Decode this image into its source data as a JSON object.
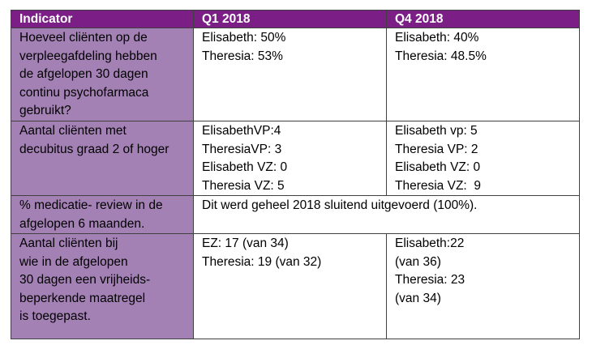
{
  "header": {
    "col1": "Indicator",
    "col2": "Q1 2018",
    "col3": "Q4 2018"
  },
  "rows": [
    {
      "indicator": [
        "Hoeveel cliënten op de",
        "verpleegafdeling hebben",
        "de afgelopen 30 dagen",
        "continu psychofarmaca",
        "gebruikt?"
      ],
      "q1": [
        "Elisabeth: 50%",
        "Theresia: 53%"
      ],
      "q4": [
        "Elisabeth: 40%",
        "Theresia: 48.5%"
      ]
    },
    {
      "indicator": [
        "Aantal cliënten met",
        "decubitus graad 2 of hoger"
      ],
      "q1": [
        "ElisabethVP:4",
        "TheresiaVP: 3",
        "Elisabeth VZ: 0",
        "Theresia VZ: 5"
      ],
      "q4": [
        "Elisabeth vp: 5",
        "Theresia VP: 2",
        "Elisabeth VZ: 0",
        "Theresia VZ:  9"
      ]
    },
    {
      "indicator": [
        "% medicatie- review in de",
        "afgelopen 6 maanden."
      ],
      "merged": "Dit werd geheel 2018 sluitend uitgevoerd (100%)."
    },
    {
      "indicator": [
        "Aantal cliënten bij",
        "wie in de afgelopen",
        "30 dagen een vrijheids-",
        "beperkende maatregel",
        "is toegepast."
      ],
      "q1": [
        "EZ: 17 (van 34)",
        "Theresia: 19 (van 32)"
      ],
      "q4": [
        "Elisabeth:22",
        "(van 36)",
        "Theresia: 23",
        "(van 34)"
      ]
    }
  ],
  "colors": {
    "header_bg": "#7b1f86",
    "header_text": "#ffffff",
    "indicator_bg": "#a481b5",
    "border": "#404040"
  }
}
